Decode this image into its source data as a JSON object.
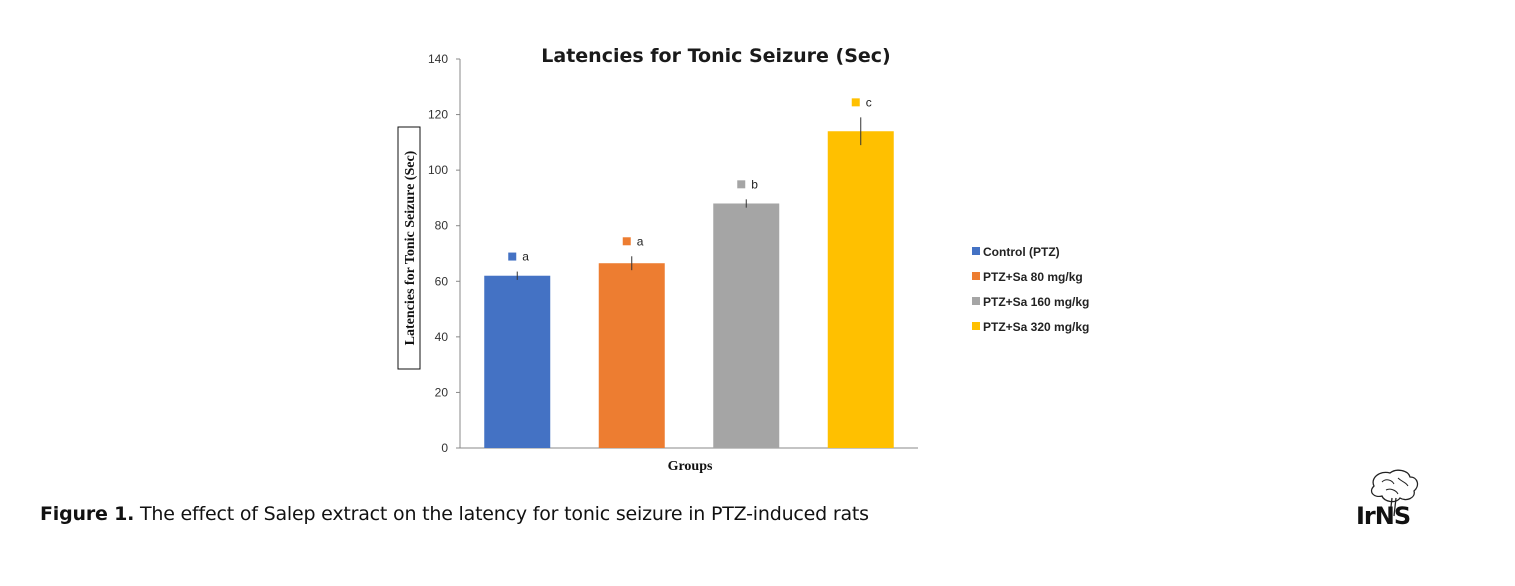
{
  "chart_data": {
    "type": "bar",
    "title": "Latencies for Tonic Seizure (Sec)",
    "xlabel": "Groups",
    "ylabel": "Latencies for Tonic Seizure (Sec)",
    "ylim": [
      0,
      140
    ],
    "yticks": [
      0,
      20,
      40,
      60,
      80,
      100,
      120,
      140
    ],
    "legend_position": "right",
    "grid": false,
    "series": [
      {
        "name": "Control (PTZ)",
        "value": 62,
        "error": 1.5,
        "sig": "a",
        "color": "#4472C4"
      },
      {
        "name": "PTZ+Sa 80 mg/kg",
        "value": 66.5,
        "error": 2.5,
        "sig": "a",
        "color": "#ED7D31"
      },
      {
        "name": "PTZ+Sa 160 mg/kg",
        "value": 88,
        "error": 1.5,
        "sig": "b",
        "color": "#A5A5A5"
      },
      {
        "name": "PTZ+Sa 320 mg/kg",
        "value": 114,
        "error": 5,
        "sig": "c",
        "color": "#FFC000"
      }
    ]
  },
  "caption": {
    "label": "Figure 1.",
    "text": " The effect of Salep extract on the latency for tonic seizure in PTZ-induced rats"
  },
  "logo": {
    "text": "IrNS"
  }
}
